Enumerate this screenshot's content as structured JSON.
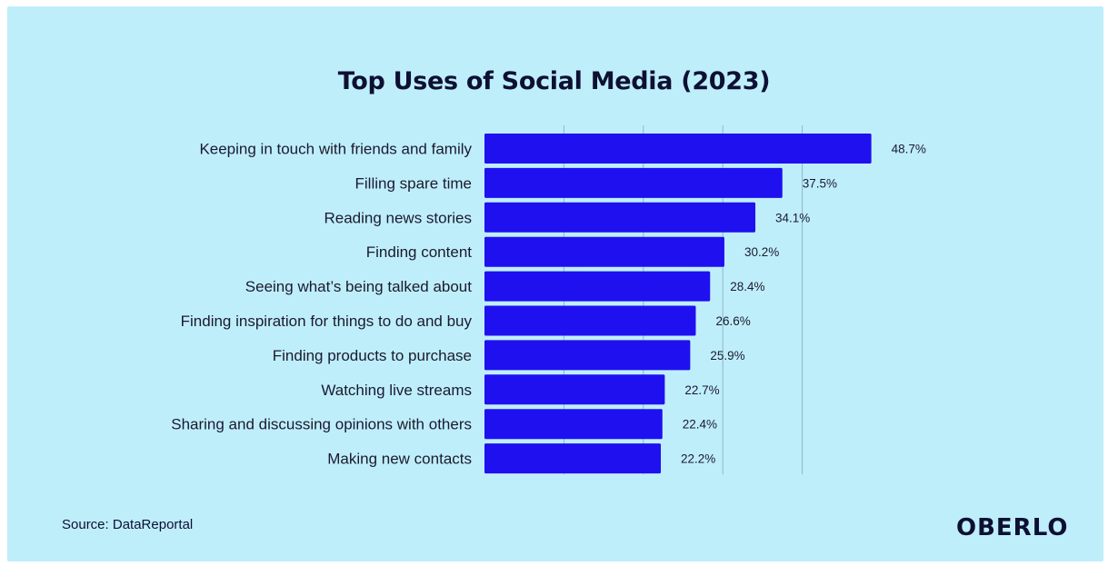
{
  "chart_data": {
    "type": "bar",
    "orientation": "horizontal",
    "title": "Top Uses of Social Media (2023)",
    "categories": [
      "Keeping in touch with friends and family",
      "Filling spare time",
      "Reading news stories",
      "Finding content",
      "Seeing what’s being talked about",
      "Finding inspiration for things to do and buy",
      "Finding products to purchase",
      "Watching live streams",
      "Sharing and discussing opinions with others",
      "Making new contacts"
    ],
    "values": [
      48.7,
      37.5,
      34.1,
      30.2,
      28.4,
      26.6,
      25.9,
      22.7,
      22.4,
      22.2
    ],
    "value_labels": [
      "48.7%",
      "37.5%",
      "34.1%",
      "30.2%",
      "28.4%",
      "26.6%",
      "25.9%",
      "22.7%",
      "22.4%",
      "22.2%"
    ],
    "xlim": [
      0,
      50
    ],
    "grid": true,
    "bar_color": "#1f10f0",
    "background_color": "#bfeefb"
  },
  "footer": {
    "source": "Source: DataReportal",
    "logo_text": "OBERLO"
  },
  "colors": {
    "title_text": "#0d1033",
    "gridline": "#8fb7c4"
  }
}
